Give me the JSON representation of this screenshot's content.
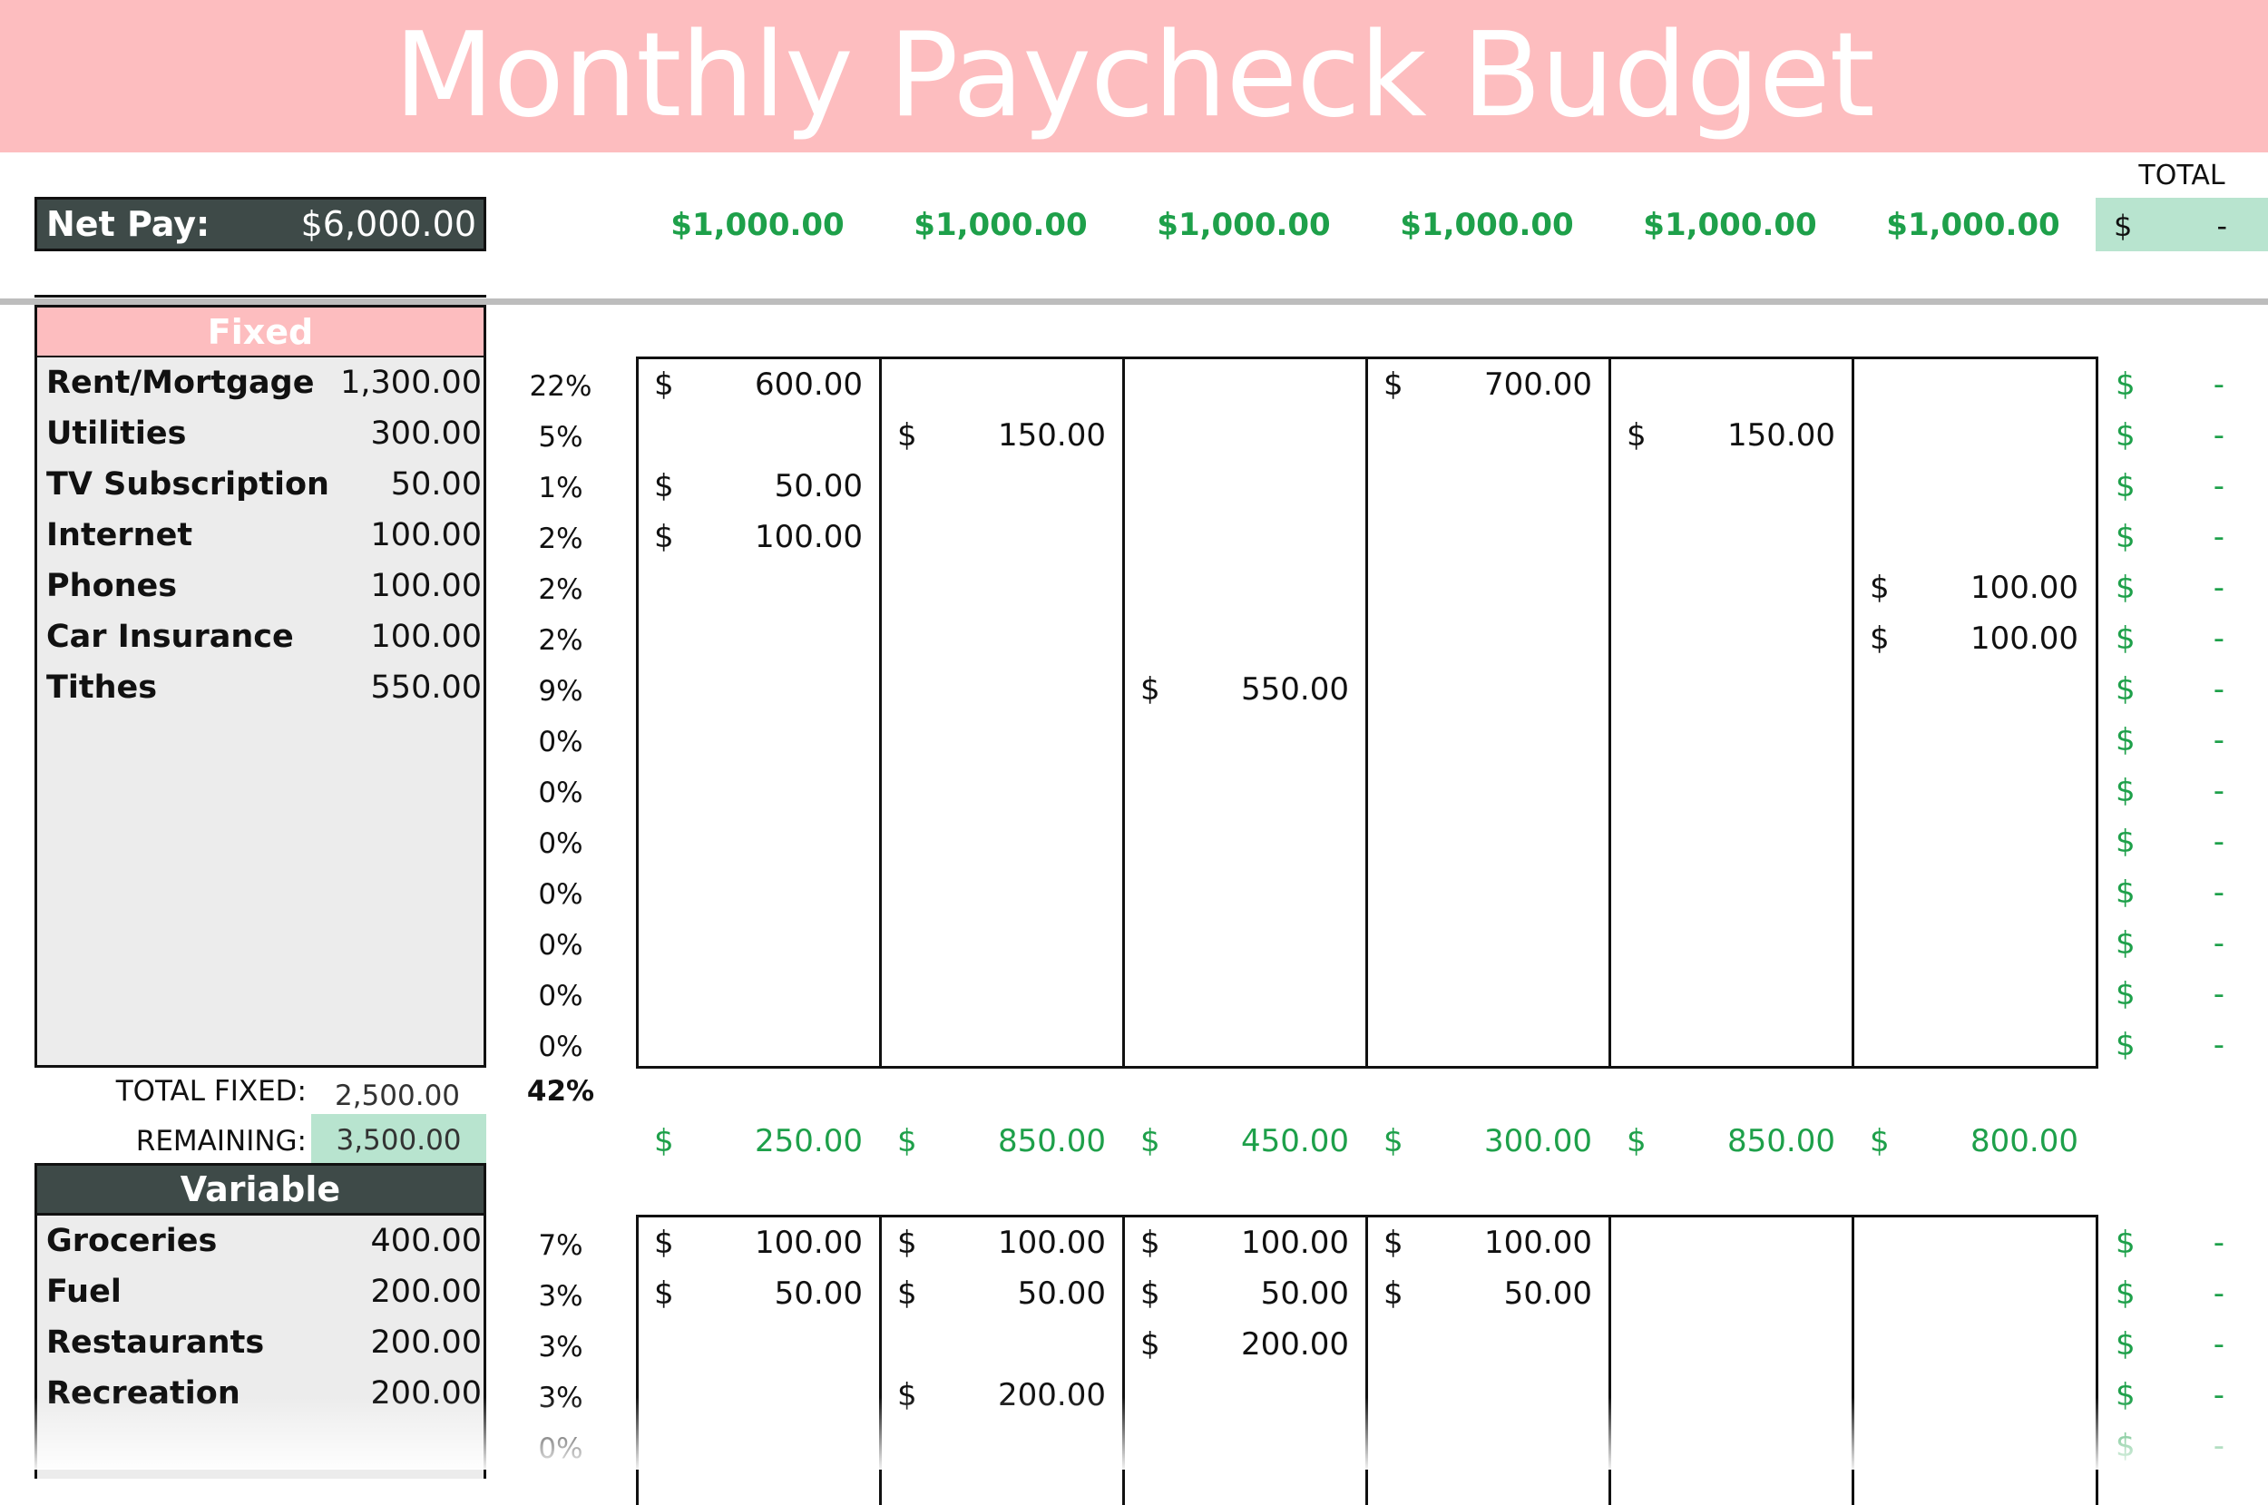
{
  "header": {
    "title": "Monthly Paycheck Budget"
  },
  "net_pay": {
    "label": "Net Pay:",
    "value": "$6,000.00"
  },
  "paychecks": [
    "$1,000.00",
    "$1,000.00",
    "$1,000.00",
    "$1,000.00",
    "$1,000.00",
    "$1,000.00"
  ],
  "total": {
    "header": "TOTAL",
    "currency": "$",
    "value": "-"
  },
  "fixed": {
    "header": "Fixed",
    "items": [
      {
        "name": "Rent/Mortgage",
        "amount": "1,300.00",
        "pct": "22%",
        "cells": [
          "600.00",
          "",
          "",
          "700.00",
          "",
          ""
        ]
      },
      {
        "name": "Utilities",
        "amount": "300.00",
        "pct": "5%",
        "cells": [
          "",
          "150.00",
          "",
          "",
          "150.00",
          ""
        ]
      },
      {
        "name": "TV Subscription",
        "amount": "50.00",
        "pct": "1%",
        "cells": [
          "50.00",
          "",
          "",
          "",
          "",
          ""
        ]
      },
      {
        "name": "Internet",
        "amount": "100.00",
        "pct": "2%",
        "cells": [
          "100.00",
          "",
          "",
          "",
          "",
          ""
        ]
      },
      {
        "name": "Phones",
        "amount": "100.00",
        "pct": "2%",
        "cells": [
          "",
          "",
          "",
          "",
          "",
          "100.00"
        ]
      },
      {
        "name": "Car Insurance",
        "amount": "100.00",
        "pct": "2%",
        "cells": [
          "",
          "",
          "",
          "",
          "",
          "100.00"
        ]
      },
      {
        "name": "Tithes",
        "amount": "550.00",
        "pct": "9%",
        "cells": [
          "",
          "",
          "550.00",
          "",
          "",
          ""
        ]
      }
    ],
    "empty_pcts": [
      "0%",
      "0%",
      "0%",
      "0%",
      "0%",
      "0%",
      "0%"
    ],
    "row_total": {
      "currency": "$",
      "value": "-"
    },
    "total_label": "TOTAL FIXED:",
    "total_value": "2,500.00",
    "total_pct": "42%",
    "remaining_label": "REMAINING:",
    "remaining_value": "3,500.00",
    "remaining_per_check": [
      "250.00",
      "850.00",
      "450.00",
      "300.00",
      "850.00",
      "800.00"
    ]
  },
  "variable": {
    "header": "Variable",
    "items": [
      {
        "name": "Groceries",
        "amount": "400.00",
        "pct": "7%",
        "cells": [
          "100.00",
          "100.00",
          "100.00",
          "100.00",
          "",
          ""
        ]
      },
      {
        "name": "Fuel",
        "amount": "200.00",
        "pct": "3%",
        "cells": [
          "50.00",
          "50.00",
          "50.00",
          "50.00",
          "",
          ""
        ]
      },
      {
        "name": "Restaurants",
        "amount": "200.00",
        "pct": "3%",
        "cells": [
          "",
          "",
          "200.00",
          "",
          "",
          ""
        ]
      },
      {
        "name": "Recreation",
        "amount": "200.00",
        "pct": "3%",
        "cells": [
          "",
          "200.00",
          "",
          "",
          "",
          ""
        ]
      }
    ],
    "empty_pcts": [
      "0%"
    ]
  },
  "colors": {
    "accent_pink": "#fdbdbf",
    "dark_header": "#3e4a48",
    "money_green": "#1ea04a",
    "total_green": "#b8e4cf"
  }
}
